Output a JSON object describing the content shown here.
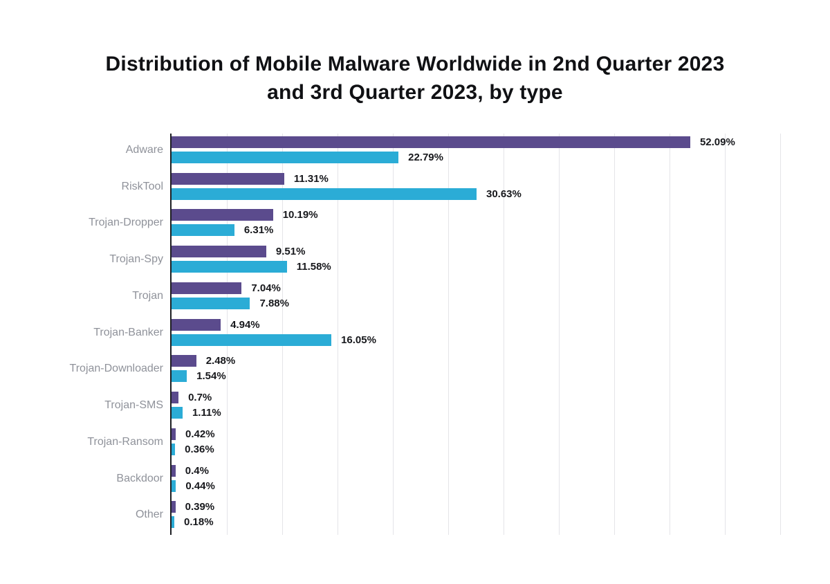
{
  "title": {
    "text": "Distribution of Mobile Malware Worldwide in 2nd Quarter 2023 and 3rd Quarter 2023, by type"
  },
  "chart_data": {
    "type": "bar",
    "orientation": "horizontal",
    "title": "Distribution of Mobile Malware Worldwide in 2nd Quarter 2023 and 3rd Quarter 2023, by type",
    "categories": [
      "Adware",
      "RiskTool",
      "Trojan-Dropper",
      "Trojan-Spy",
      "Trojan",
      "Trojan-Banker",
      "Trojan-Downloader",
      "Trojan-SMS",
      "Trojan-Ransom",
      "Backdoor",
      "Other"
    ],
    "series": [
      {
        "name": "2nd Quarter 2023",
        "color": "#5b4b8d",
        "values": [
          52.09,
          11.31,
          10.19,
          9.51,
          7.04,
          4.94,
          2.48,
          0.7,
          0.42,
          0.4,
          0.39
        ],
        "labels": [
          "52.09%",
          "11.31%",
          "10.19%",
          "9.51%",
          "7.04%",
          "4.94%",
          "2.48%",
          "0.7%",
          "0.42%",
          "0.4%",
          "0.39%"
        ]
      },
      {
        "name": "3rd Quarter 2023",
        "color": "#2bacd6",
        "values": [
          22.79,
          30.63,
          6.31,
          11.58,
          7.88,
          16.05,
          1.54,
          1.11,
          0.36,
          0.44,
          0.18
        ],
        "labels": [
          "22.79%",
          "30.63%",
          "6.31%",
          "11.58%",
          "7.88%",
          "16.05%",
          "1.54%",
          "1.11%",
          "0.36%",
          "0.44%",
          "0.18%"
        ]
      }
    ],
    "xlabel": "",
    "ylabel": "",
    "xlim": [
      0,
      63.9
    ],
    "grid": true,
    "gridline_count": 11,
    "legend": false,
    "value_labels_shown": true,
    "colors": {
      "axis": "#1d1e22",
      "grid": "#e4e4e8",
      "category_label": "#8f929a",
      "value_label": "#17181c",
      "background": "#ffffff"
    }
  }
}
